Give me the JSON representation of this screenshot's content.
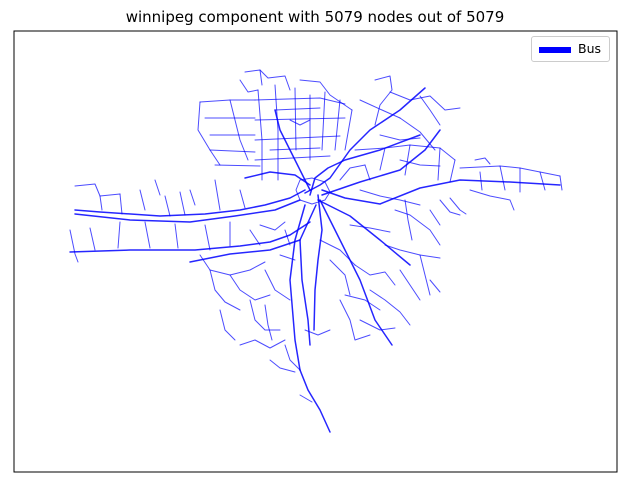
{
  "figure": {
    "title": "winnipeg component with 5079 nodes out of 5079"
  },
  "legend": {
    "entries": [
      {
        "label": "Bus",
        "color": "#0000ff"
      }
    ]
  },
  "network": {
    "edge_color": "#0000ff",
    "node_count": 5079,
    "total_nodes": 5079
  }
}
